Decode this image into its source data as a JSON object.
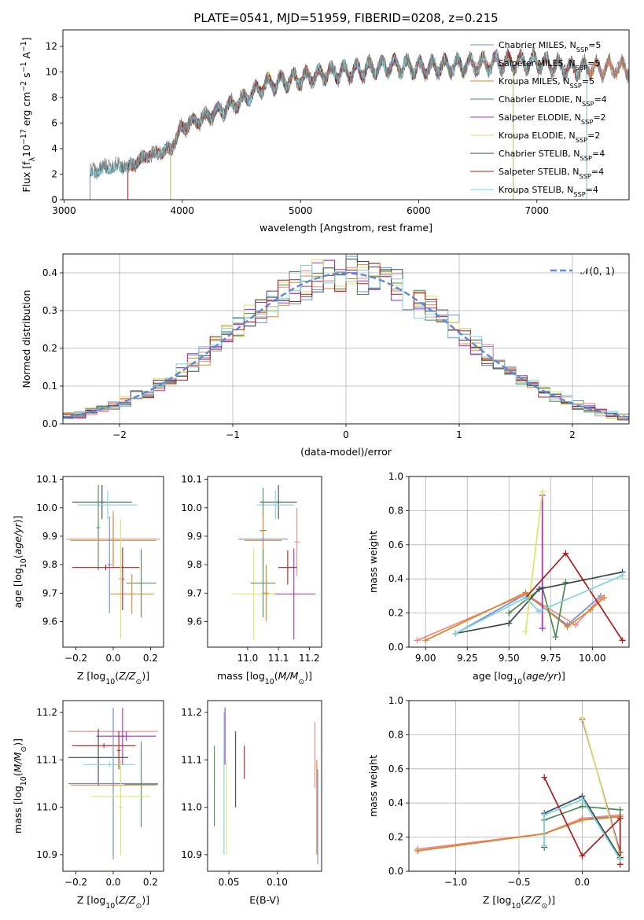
{
  "chart_data": [
    {
      "id": "spectrum",
      "type": "line",
      "title": "PLATE=0541, MJD=51959, FIBERID=0208, z=0.215",
      "xlabel": "wavelength [Angstrom, rest frame]",
      "ylabel": "Flux [fλ10⁻¹⁷ erg cm⁻² s⁻¹ A⁻¹]",
      "xlim": [
        2990,
        7780
      ],
      "ylim": [
        0,
        13.3
      ],
      "xticks": [
        3000,
        4000,
        5000,
        6000,
        7000
      ],
      "yticks": [
        0,
        2,
        4,
        6,
        8,
        10,
        12
      ],
      "legend_position": "top-right",
      "series": [
        {
          "name": "Chabrier MILES, N_SSP=5",
          "color": "#6b8fd6",
          "start": 3540,
          "end": 7780
        },
        {
          "name": "Salpeter MILES, N_SSP=5",
          "color": "#ee8a84",
          "start": 3540,
          "end": 7780
        },
        {
          "name": "Kroupa MILES, N_SSP=5",
          "color": "#e0832b",
          "start": 3540,
          "end": 7780
        },
        {
          "name": "Chabrier ELODIE, N_SSP=4",
          "color": "#4c8a52",
          "start": 3900,
          "end": 6800
        },
        {
          "name": "Salpeter ELODIE, N_SSP=2",
          "color": "#a52fc4",
          "start": 3900,
          "end": 6800
        },
        {
          "name": "Kroupa ELODIE, N_SSP=2",
          "color": "#d6e866",
          "start": 3900,
          "end": 6800
        },
        {
          "name": "Chabrier STELIB, N_SSP=4",
          "color": "#3b4a4c",
          "start": 3220,
          "end": 7420
        },
        {
          "name": "Salpeter STELIB, N_SSP=4",
          "color": "#b01c1c",
          "start": 3540,
          "end": 7420
        },
        {
          "name": "Kroupa STELIB, N_SSP=4",
          "color": "#7dd3e0",
          "start": 3220,
          "end": 7420
        }
      ],
      "profile": {
        "x": [
          3220,
          3400,
          3540,
          3700,
          3900,
          4000,
          4200,
          4500,
          4700,
          5000,
          5200,
          5500,
          5800,
          6000,
          6300,
          6600,
          7000,
          7300,
          7600
        ],
        "y": [
          2.3,
          2.8,
          2.7,
          3.7,
          4.2,
          6.1,
          7.0,
          8.3,
          9.7,
          10.2,
          10.6,
          10.9,
          11.3,
          11.1,
          11.3,
          11.5,
          11.6,
          11.0,
          11.1
        ]
      },
      "observed_color": "#7f7f7f"
    },
    {
      "id": "residuals",
      "type": "line",
      "xlabel": "(data-model)/error",
      "ylabel": "Normed distribution",
      "xlim": [
        -2.5,
        2.5
      ],
      "ylim": [
        0,
        0.45
      ],
      "xticks": [
        -2,
        -1,
        0,
        1,
        2
      ],
      "yticks": [
        0.0,
        0.1,
        0.2,
        0.3,
        0.4
      ],
      "grid": true,
      "legend_position": "top-right",
      "legend": "𝒩(0, 1)",
      "gauss_color": "#5b8bd9",
      "bins_step": 0.1,
      "hist_colors": [
        "#6b8fd6",
        "#ee8a84",
        "#e0832b",
        "#4c8a52",
        "#a52fc4",
        "#d6e866",
        "#3b4a4c",
        "#b01c1c",
        "#7dd3e0"
      ]
    },
    {
      "id": "age_vs_Z",
      "type": "scatter",
      "xlabel": "Z [log10(Z/Z⊙)]",
      "ylabel": "age  [log10(age/yr)]",
      "xlim": [
        -0.27,
        0.27
      ],
      "ylim": [
        9.51,
        10.11
      ],
      "xticks": [
        -0.2,
        0.0,
        0.2
      ],
      "yticks": [
        9.6,
        9.7,
        9.8,
        9.9,
        10.0,
        10.1
      ],
      "points": [
        {
          "x": -0.06,
          "xerr": 0.16,
          "y": 10.02,
          "yerr": 0.06,
          "color": "#3b4a4c"
        },
        {
          "x": -0.03,
          "xerr": 0.16,
          "y": 10.01,
          "yerr": 0.05,
          "color": "#7dd3e0"
        },
        {
          "x": -0.08,
          "xerr": 0.01,
          "y": 9.93,
          "yerr": 0.15,
          "color": "#4c8a52"
        },
        {
          "x": 0.0,
          "xerr": 0.25,
          "y": 9.89,
          "yerr": 0.1,
          "color": "#ee8a84"
        },
        {
          "x": 0.0,
          "xerr": 0.23,
          "y": 9.885,
          "yerr": 0.09,
          "color": "#e0832b"
        },
        {
          "x": -0.02,
          "xerr": 0.01,
          "y": 9.8,
          "yerr": 0.17,
          "color": "#6b8fd6"
        },
        {
          "x": -0.04,
          "xerr": 0.18,
          "y": 9.79,
          "yerr": 0.01,
          "color": "#b01c1c"
        },
        {
          "x": 0.04,
          "xerr": 0.01,
          "y": 9.75,
          "yerr": 0.11,
          "color": "#a52fc4"
        },
        {
          "x": 0.05,
          "xerr": 0.01,
          "y": 9.75,
          "yerr": 0.11,
          "color": "#b01c1c"
        },
        {
          "x": 0.04,
          "xerr": 0.01,
          "y": 9.75,
          "yerr": 0.21,
          "color": "#d6e866"
        },
        {
          "x": 0.15,
          "xerr": 0.08,
          "y": 9.735,
          "yerr": 0.12,
          "color": "#4c8a52"
        },
        {
          "x": 0.1,
          "xerr": 0.12,
          "y": 9.697,
          "yerr": 0.07,
          "color": "#e0832b"
        }
      ]
    },
    {
      "id": "age_vs_mass",
      "type": "scatter",
      "xlabel": "mass [log10(M/M⊙)]",
      "xlim": [
        10.87,
        11.24
      ],
      "ylim": [
        9.51,
        10.11
      ],
      "xticks": [
        11.0,
        11.1,
        11.2
      ],
      "yticks": [
        9.6,
        9.7,
        9.8,
        9.9,
        10.0,
        10.1
      ],
      "points": [
        {
          "x": 11.1,
          "xerr": 0.06,
          "y": 10.02,
          "yerr": 0.06,
          "color": "#3b4a4c"
        },
        {
          "x": 11.09,
          "xerr": 0.06,
          "y": 10.01,
          "yerr": 0.05,
          "color": "#7dd3e0"
        },
        {
          "x": 11.05,
          "xerr": 0.01,
          "y": 9.92,
          "yerr": 0.15,
          "color": "#4c8a52"
        },
        {
          "x": 11.16,
          "xerr": 0.01,
          "y": 9.88,
          "yerr": 0.12,
          "color": "#ee8a84"
        },
        {
          "x": 11.05,
          "xerr": 0.06,
          "y": 9.885,
          "yerr": 0.09,
          "color": "#e0832b"
        },
        {
          "x": 11.05,
          "xerr": 0.08,
          "y": 9.89,
          "yerr": 0.01,
          "color": "#6b8fd6"
        },
        {
          "x": 11.13,
          "xerr": 0.03,
          "y": 9.79,
          "yerr": 0.06,
          "color": "#b01c1c"
        },
        {
          "x": 11.15,
          "xerr": 0.07,
          "y": 9.697,
          "yerr": 0.16,
          "color": "#a52fc4"
        },
        {
          "x": 11.02,
          "xerr": 0.07,
          "y": 9.697,
          "yerr": 0.16,
          "color": "#d6e866"
        },
        {
          "x": 11.05,
          "xerr": 0.04,
          "y": 9.735,
          "yerr": 0.12,
          "color": "#4c8a52"
        },
        {
          "x": 11.06,
          "xerr": 0.01,
          "y": 9.7,
          "yerr": 0.1,
          "color": "#e0832b"
        }
      ]
    },
    {
      "id": "weight_vs_age",
      "type": "line",
      "xlabel": "age  [log10(age/yr)]",
      "ylabel": "mass weight",
      "xlim": [
        8.9,
        10.22
      ],
      "ylim": [
        0,
        1.0
      ],
      "xticks": [
        9.0,
        9.25,
        9.5,
        9.75,
        10.0
      ],
      "yticks": [
        0.0,
        0.2,
        0.4,
        0.6,
        0.8,
        1.0
      ],
      "grid": true,
      "series": [
        {
          "color": "#6b8fd6",
          "x": [
            9.18,
            9.6,
            9.85,
            10.05
          ],
          "y": [
            0.08,
            0.31,
            0.13,
            0.3
          ]
        },
        {
          "color": "#ee8a84",
          "x": [
            8.95,
            9.6,
            9.9,
            10.05
          ],
          "y": [
            0.04,
            0.31,
            0.13,
            0.29
          ]
        },
        {
          "color": "#e0832b",
          "x": [
            9.0,
            9.6,
            9.85,
            9.99,
            10.07
          ],
          "y": [
            0.04,
            0.32,
            0.12,
            0.22,
            0.29
          ]
        },
        {
          "color": "#4c8a52",
          "x": [
            9.5,
            9.7,
            9.78,
            9.84
          ],
          "y": [
            0.2,
            0.35,
            0.06,
            0.38
          ]
        },
        {
          "color": "#a52fc4",
          "x": [
            9.7,
            9.7
          ],
          "y": [
            0.11,
            0.89
          ]
        },
        {
          "color": "#d6e866",
          "x": [
            9.6,
            9.7
          ],
          "y": [
            0.09,
            0.91
          ]
        },
        {
          "color": "#3b4a4c",
          "x": [
            9.18,
            9.5,
            9.68,
            10.18
          ],
          "y": [
            0.08,
            0.14,
            0.34,
            0.44
          ]
        },
        {
          "color": "#b01c1c",
          "x": [
            9.6,
            9.84,
            10.18
          ],
          "y": [
            0.29,
            0.55,
            0.04
          ]
        },
        {
          "color": "#7dd3e0",
          "x": [
            9.18,
            9.6,
            9.68,
            10.18
          ],
          "y": [
            0.08,
            0.29,
            0.21,
            0.42
          ]
        }
      ]
    },
    {
      "id": "mass_vs_Z",
      "type": "scatter",
      "xlabel": "Z [log10(Z/Z⊙)]",
      "ylabel": "mass [log10(M/M⊙)]",
      "xlim": [
        -0.27,
        0.27
      ],
      "ylim": [
        10.865,
        11.225
      ],
      "xticks": [
        -0.2,
        0.0,
        0.2
      ],
      "yticks": [
        10.9,
        11.0,
        11.1,
        11.2
      ],
      "points": [
        {
          "x": 0.0,
          "xerr": 0.24,
          "y": 11.16,
          "yerr": 0.005,
          "color": "#ee8a84"
        },
        {
          "x": 0.07,
          "xerr": 0.16,
          "y": 11.15,
          "yerr": 0.01,
          "color": "#a52fc4"
        },
        {
          "x": 0.05,
          "xerr": 0.01,
          "y": 11.15,
          "yerr": 0.06,
          "color": "#a52fc4"
        },
        {
          "x": -0.05,
          "xerr": 0.17,
          "y": 11.13,
          "yerr": 0.005,
          "color": "#b01c1c"
        },
        {
          "x": 0.03,
          "xerr": 0.01,
          "y": 11.12,
          "yerr": 0.04,
          "color": "#b01c1c"
        },
        {
          "x": -0.08,
          "xerr": 0.16,
          "y": 11.105,
          "yerr": 0.06,
          "color": "#3b4a4c"
        },
        {
          "x": -0.02,
          "xerr": 0.14,
          "y": 11.09,
          "yerr": 0.005,
          "color": "#7dd3e0"
        },
        {
          "x": 0.0,
          "xerr": 0.24,
          "y": 11.05,
          "yerr": 0.005,
          "color": "#6b8fd6"
        },
        {
          "x": 0.0,
          "xerr": 0.01,
          "y": 11.05,
          "yerr": 0.16,
          "color": "#6b8fd6"
        },
        {
          "x": 0.15,
          "xerr": 0.09,
          "y": 11.048,
          "yerr": 0.09,
          "color": "#4c8a52"
        },
        {
          "x": 0.0,
          "xerr": 0.23,
          "y": 11.047,
          "yerr": 0.005,
          "color": "#e0832b"
        },
        {
          "x": 0.04,
          "xerr": 0.16,
          "y": 11.023,
          "yerr": 0.005,
          "color": "#d6e866"
        },
        {
          "x": 0.04,
          "xerr": 0.01,
          "y": 11.0,
          "yerr": 0.1,
          "color": "#d6e866"
        }
      ]
    },
    {
      "id": "mass_vs_EBV",
      "type": "scatter",
      "xlabel": "E(B-V)",
      "xlim": [
        0.028,
        0.146
      ],
      "ylim": [
        10.865,
        11.225
      ],
      "xticks": [
        0.05,
        0.1
      ],
      "xticklabels": [
        "0.05",
        "0.10"
      ],
      "yticks": [
        10.9,
        11.0,
        11.1,
        11.2
      ],
      "points": [
        {
          "x": 0.046,
          "y": 11.15,
          "yerr": 0.06,
          "color": "#a52fc4"
        },
        {
          "x": 0.045,
          "y": 11.05,
          "yerr": 0.15,
          "color": "#7dd3e0"
        },
        {
          "x": 0.0475,
          "y": 11.0,
          "yerr": 0.1,
          "color": "#d6e866"
        },
        {
          "x": 0.035,
          "y": 11.045,
          "yerr": 0.085,
          "color": "#4c8a52"
        },
        {
          "x": 0.057,
          "y": 11.08,
          "yerr": 0.08,
          "color": "#3b4a4c"
        },
        {
          "x": 0.066,
          "y": 11.095,
          "yerr": 0.035,
          "color": "#b01c1c"
        },
        {
          "x": 0.139,
          "y": 11.11,
          "yerr": 0.07,
          "color": "#ee8a84"
        },
        {
          "x": 0.141,
          "y": 11.0,
          "yerr": 0.1,
          "color": "#e0832b"
        },
        {
          "x": 0.142,
          "y": 10.98,
          "yerr": 0.1,
          "color": "#6b8fd6"
        }
      ]
    },
    {
      "id": "weight_vs_Z",
      "type": "line",
      "xlabel": "Z [log10(Z/Z⊙)]",
      "ylabel": "mass weight",
      "xlim": [
        -1.37,
        0.37
      ],
      "ylim": [
        0,
        1.0
      ],
      "xticks": [
        -1.0,
        -0.5,
        0.0
      ],
      "xticklabels": [
        "−1.0",
        "−0.5",
        "0.0"
      ],
      "yticks": [
        0.0,
        0.2,
        0.4,
        0.6,
        0.8,
        1.0
      ],
      "grid": true,
      "series": [
        {
          "color": "#6b8fd6",
          "x": [
            -1.3,
            -0.3,
            0.0,
            0.3
          ],
          "y": [
            0.12,
            0.22,
            0.31,
            0.32
          ]
        },
        {
          "color": "#ee8a84",
          "x": [
            -1.3,
            -0.3,
            0.0,
            0.3
          ],
          "y": [
            0.13,
            0.22,
            0.31,
            0.33
          ]
        },
        {
          "color": "#e0832b",
          "x": [
            -1.3,
            -0.3,
            0.0,
            0.3
          ],
          "y": [
            0.12,
            0.22,
            0.3,
            0.32
          ]
        },
        {
          "color": "#4c8a52",
          "x": [
            -0.3,
            0.0,
            0.3,
            0.3
          ],
          "y": [
            0.3,
            0.38,
            0.36,
            0.08
          ]
        },
        {
          "color": "#a52fc4",
          "x": [
            0.0,
            0.3
          ],
          "y": [
            0.89,
            0.11
          ]
        },
        {
          "color": "#d6e866",
          "x": [
            0.0,
            0.3
          ],
          "y": [
            0.9,
            0.09
          ]
        },
        {
          "color": "#3b4a4c",
          "x": [
            -0.3,
            -0.3,
            0.0,
            0.3
          ],
          "y": [
            0.14,
            0.34,
            0.44,
            0.08
          ]
        },
        {
          "color": "#b01c1c",
          "x": [
            -0.3,
            0.0,
            0.3,
            0.3
          ],
          "y": [
            0.55,
            0.09,
            0.31,
            0.04
          ]
        },
        {
          "color": "#7dd3e0",
          "x": [
            -0.3,
            -0.3,
            0.0,
            0.3
          ],
          "y": [
            0.15,
            0.33,
            0.42,
            0.07
          ]
        }
      ]
    }
  ]
}
